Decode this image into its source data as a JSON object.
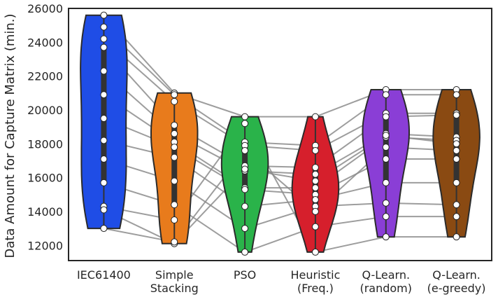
{
  "chart_data": {
    "type": "violin",
    "ylabel": "Data Amount for Capture Matrix (min.)",
    "ylim": [
      11100,
      26000
    ],
    "yticks": [
      12000,
      14000,
      16000,
      18000,
      20000,
      22000,
      24000,
      26000
    ],
    "ytick_labels": [
      "12000",
      "14000",
      "16000",
      "18000",
      "20000",
      "22000",
      "24000",
      "26000"
    ],
    "categories": [
      {
        "lines": [
          "IEC61400"
        ]
      },
      {
        "lines": [
          "Simple",
          "Stacking"
        ]
      },
      {
        "lines": [
          "PSO"
        ]
      },
      {
        "lines": [
          "Heuristic",
          "(Freq.)"
        ]
      },
      {
        "lines": [
          "Q-Learn.",
          "(random)"
        ]
      },
      {
        "lines": [
          "Q-Learn.",
          "(e-greedy)"
        ]
      }
    ],
    "colors": [
      "#1f4de6",
      "#e87b1c",
      "#2ab34a",
      "#d61f2c",
      "#8a3ed6",
      "#8a4a12"
    ],
    "outline_color": "#2b2b2b",
    "point_fill": "#ffffff",
    "series": [
      {
        "values": [
          25600,
          21000,
          19600,
          19600,
          21200,
          21200
        ]
      },
      {
        "values": [
          24900,
          20900,
          18100,
          17900,
          20900,
          20900
        ]
      },
      {
        "values": [
          24200,
          20500,
          17900,
          17600,
          19800,
          19800
        ]
      },
      {
        "values": [
          23700,
          19100,
          16700,
          16600,
          19600,
          19700
        ]
      },
      {
        "values": [
          22300,
          18600,
          16400,
          16200,
          18600,
          18400
        ]
      },
      {
        "values": [
          20900,
          18100,
          15400,
          15400,
          18400,
          18200
        ]
      },
      {
        "values": [
          19500,
          17800,
          15300,
          15000,
          17100,
          17100
        ]
      },
      {
        "values": [
          18200,
          17200,
          14300,
          14700,
          15700,
          15700
        ]
      },
      {
        "values": [
          17100,
          15800,
          13000,
          14300,
          14500,
          14400
        ]
      },
      {
        "values": [
          15700,
          14400,
          11600,
          13100,
          13700,
          13700
        ]
      },
      {
        "values": [
          14300,
          13500,
          19200,
          11600,
          12500,
          12500
        ]
      },
      {
        "values": [
          14100,
          12100,
          16500,
          15800,
          18500,
          18000
        ]
      },
      {
        "values": [
          13000,
          12200,
          17600,
          14000,
          17800,
          17600
        ]
      }
    ]
  }
}
